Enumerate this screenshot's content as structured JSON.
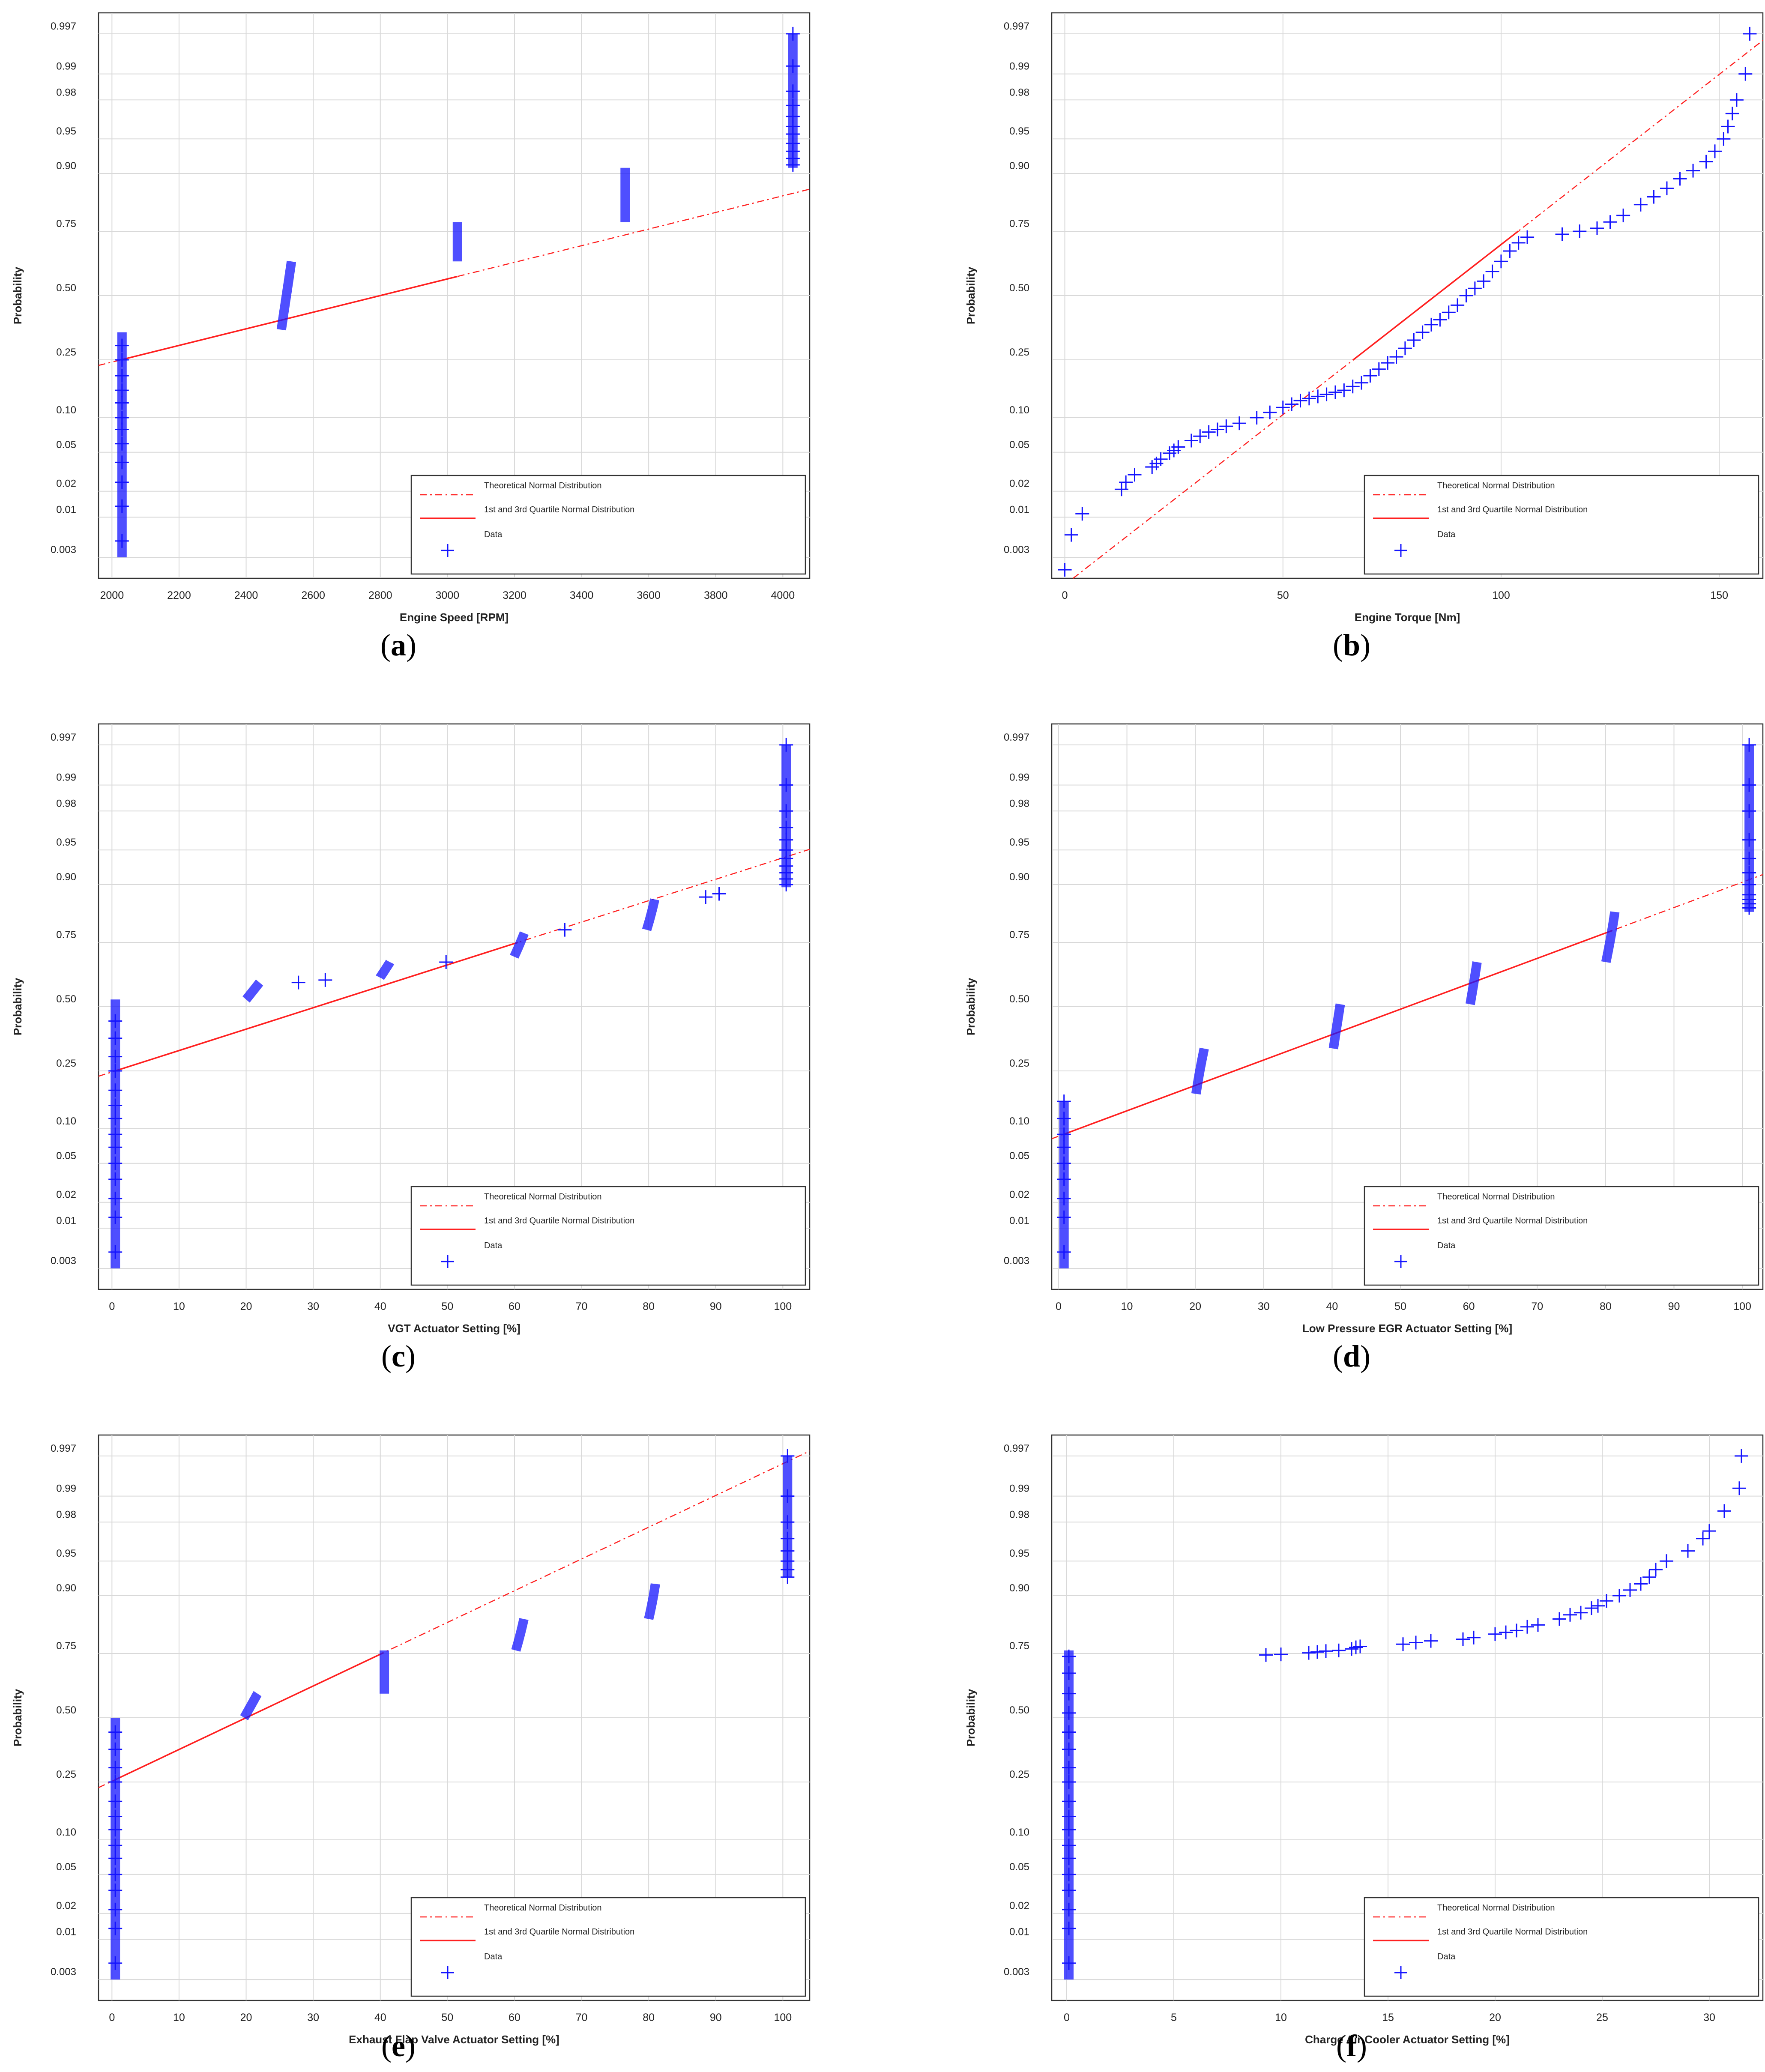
{
  "figure": {
    "colors": {
      "data": "#1414ff",
      "fit": "#ff2020",
      "grid": "#d9d9d9",
      "axis": "#333333"
    },
    "legend": {
      "theoretical": "Theoretical Normal Distribution",
      "quartile": "1st and 3rd Quartile Normal Distribution",
      "data": "Data"
    },
    "ylabel": "Probability",
    "yticks": [
      0.003,
      0.01,
      0.02,
      0.05,
      0.1,
      0.25,
      0.5,
      0.75,
      0.9,
      0.95,
      0.98,
      0.99,
      0.997
    ],
    "ytick_labels": [
      "0.003",
      "0.01",
      "0.02",
      "0.05",
      "0.10",
      "0.25",
      "0.50",
      "0.75",
      "0.90",
      "0.95",
      "0.98",
      "0.99",
      "0.997"
    ]
  },
  "chart_data": [
    {
      "type": "scatter",
      "subtype": "normal-probability-plot",
      "panel_label": "a",
      "xlabel": "Engine Speed [RPM]",
      "xlim": [
        1960,
        4080
      ],
      "xticks": [
        2000,
        2200,
        2400,
        2600,
        2800,
        3000,
        3200,
        3400,
        3600,
        3800,
        4000
      ],
      "fit_line": {
        "mu": 2800,
        "sigma": 1146
      },
      "quartile_range": [
        2030,
        3030
      ],
      "groups": [
        {
          "x": 2030,
          "p": [
            0.003,
            0.35
          ],
          "top_marks": [
            0.005,
            0.0135,
            0.025,
            0.04,
            0.06,
            0.08,
            0.1,
            0.13,
            0.16,
            0.2,
            0.25,
            0.3
          ]
        },
        {
          "x": 2520,
          "p": [
            0.36,
            0.64
          ],
          "spread": 30
        },
        {
          "x": 3030,
          "p": [
            0.64,
            0.78
          ]
        },
        {
          "x": 3530,
          "p": [
            0.78,
            0.91
          ]
        },
        {
          "x": 4030,
          "p": [
            0.91,
            0.997
          ],
          "top_marks": [
            0.915,
            0.925,
            0.935,
            0.945,
            0.955,
            0.962,
            0.97,
            0.977,
            0.984,
            0.992,
            0.997
          ]
        }
      ]
    },
    {
      "type": "scatter",
      "subtype": "normal-probability-plot",
      "panel_label": "b",
      "xlabel": "Engine Torque [Nm]",
      "xlim": [
        -3,
        160
      ],
      "xticks": [
        0,
        50,
        100,
        150
      ],
      "fit_line": {
        "mu": 85,
        "sigma": 28
      },
      "quartile_range": [
        66,
        104
      ],
      "curve": [
        [
          0,
          0.002
        ],
        [
          1.5,
          0.006
        ],
        [
          4,
          0.011
        ],
        [
          13,
          0.021
        ],
        [
          14,
          0.025
        ],
        [
          16,
          0.03
        ],
        [
          20,
          0.036
        ],
        [
          21,
          0.039
        ],
        [
          22,
          0.043
        ],
        [
          24,
          0.049
        ],
        [
          25,
          0.052
        ],
        [
          26,
          0.056
        ],
        [
          29,
          0.064
        ],
        [
          31,
          0.07
        ],
        [
          33,
          0.076
        ],
        [
          35,
          0.08
        ],
        [
          37,
          0.085
        ],
        [
          40,
          0.09
        ],
        [
          44,
          0.1
        ],
        [
          47,
          0.11
        ],
        [
          50,
          0.12
        ],
        [
          52,
          0.127
        ],
        [
          54,
          0.135
        ],
        [
          56,
          0.14
        ],
        [
          58,
          0.145
        ],
        [
          60,
          0.15
        ],
        [
          62,
          0.155
        ],
        [
          64,
          0.16
        ],
        [
          66,
          0.17
        ],
        [
          68,
          0.18
        ],
        [
          70,
          0.2
        ],
        [
          72,
          0.22
        ],
        [
          74,
          0.24
        ],
        [
          76,
          0.26
        ],
        [
          78,
          0.29
        ],
        [
          80,
          0.32
        ],
        [
          82,
          0.35
        ],
        [
          84,
          0.38
        ],
        [
          86,
          0.4
        ],
        [
          88,
          0.43
        ],
        [
          90,
          0.46
        ],
        [
          92,
          0.5
        ],
        [
          94,
          0.53
        ],
        [
          96,
          0.56
        ],
        [
          98,
          0.6
        ],
        [
          100,
          0.64
        ],
        [
          102,
          0.68
        ],
        [
          104,
          0.71
        ],
        [
          106,
          0.73
        ],
        [
          114,
          0.74
        ],
        [
          118,
          0.75
        ],
        [
          122,
          0.76
        ],
        [
          125,
          0.78
        ],
        [
          128,
          0.8
        ],
        [
          132,
          0.83
        ],
        [
          135,
          0.85
        ],
        [
          138,
          0.87
        ],
        [
          141,
          0.89
        ],
        [
          144,
          0.905
        ],
        [
          147,
          0.92
        ],
        [
          149,
          0.935
        ],
        [
          151,
          0.95
        ],
        [
          152,
          0.962
        ],
        [
          153,
          0.972
        ],
        [
          154,
          0.98
        ],
        [
          156,
          0.99
        ],
        [
          157,
          0.997
        ]
      ]
    },
    {
      "type": "scatter",
      "subtype": "normal-probability-plot",
      "panel_label": "c",
      "xlabel": "VGT Actuator Setting [%]",
      "xlim": [
        -2,
        104
      ],
      "xticks": [
        0,
        10,
        20,
        30,
        40,
        50,
        60,
        70,
        80,
        90,
        100
      ],
      "fit_line": {
        "mu": 30.5,
        "sigma": 44.5
      },
      "quartile_range": [
        0.5,
        60.5
      ],
      "groups": [
        {
          "x": 0.5,
          "p": [
            0.003,
            0.53
          ],
          "top_marks": [
            0.005,
            0.0135,
            0.022,
            0.035,
            0.05,
            0.07,
            0.09,
            0.12,
            0.15,
            0.19,
            0.25,
            0.3,
            0.37,
            0.44
          ]
        },
        {
          "x": 21,
          "p": [
            0.53,
            0.6
          ],
          "spread": 2
        },
        {
          "x": 60.7,
          "p": [
            0.7,
            0.78
          ],
          "spread": 1.5
        },
        {
          "x": 40.7,
          "p": [
            0.62,
            0.68
          ],
          "spread": 1.5
        },
        {
          "x": 80.3,
          "p": [
            0.79,
            0.87
          ],
          "spread": 1.2
        },
        {
          "x": 100.5,
          "p": [
            0.895,
            0.997
          ],
          "top_marks": [
            0.9,
            0.91,
            0.92,
            0.93,
            0.94,
            0.95,
            0.96,
            0.97,
            0.98,
            0.99,
            0.997
          ]
        }
      ],
      "points": [
        [
          27.8,
          0.6
        ],
        [
          31.8,
          0.61
        ],
        [
          49.8,
          0.68
        ],
        [
          67.5,
          0.79
        ],
        [
          88.5,
          0.875
        ],
        [
          90.5,
          0.882
        ]
      ]
    },
    {
      "type": "scatter",
      "subtype": "normal-probability-plot",
      "panel_label": "d",
      "xlabel": "Low Pressure EGR Actuator Setting [%]",
      "xlim": [
        -1,
        103
      ],
      "xticks": [
        0,
        10,
        20,
        30,
        40,
        50,
        60,
        70,
        80,
        90,
        100
      ],
      "fit_line": {
        "mu": 51,
        "sigma": 37.5
      },
      "quartile_range": [
        0.8,
        81
      ],
      "groups": [
        {
          "x": 0.8,
          "p": [
            0.003,
            0.16
          ],
          "top_marks": [
            0.005,
            0.0135,
            0.022,
            0.035,
            0.05,
            0.07,
            0.09,
            0.12,
            0.16
          ]
        },
        {
          "x": 20.7,
          "p": [
            0.18,
            0.33
          ],
          "spread": 1.2
        },
        {
          "x": 40.7,
          "p": [
            0.33,
            0.51
          ],
          "spread": 1
        },
        {
          "x": 60.7,
          "p": [
            0.51,
            0.68
          ],
          "spread": 1
        },
        {
          "x": 80.7,
          "p": [
            0.68,
            0.84
          ],
          "spread": 1.3
        },
        {
          "x": 101,
          "p": [
            0.84,
            0.997
          ],
          "top_marks": [
            0.85,
            0.86,
            0.87,
            0.88,
            0.9,
            0.92,
            0.94,
            0.96,
            0.98,
            0.99,
            0.997
          ]
        }
      ]
    },
    {
      "type": "scatter",
      "subtype": "normal-probability-plot",
      "panel_label": "e",
      "xlabel": "Exhaust Flap Valve Actuator Setting [%]",
      "xlim": [
        -2,
        104
      ],
      "xticks": [
        0,
        10,
        20,
        30,
        40,
        50,
        60,
        70,
        80,
        90,
        100
      ],
      "fit_line": {
        "mu": 20,
        "sigma": 30
      },
      "quartile_range": [
        0.5,
        40.5
      ],
      "groups": [
        {
          "x": 0.5,
          "p": [
            0.003,
            0.5
          ],
          "top_marks": [
            0.005,
            0.0135,
            0.022,
            0.035,
            0.05,
            0.07,
            0.09,
            0.12,
            0.15,
            0.19,
            0.25,
            0.3,
            0.37,
            0.44
          ]
        },
        {
          "x": 20.7,
          "p": [
            0.5,
            0.6
          ],
          "spread": 2
        },
        {
          "x": 40.6,
          "p": [
            0.6,
            0.76
          ]
        },
        {
          "x": 60.8,
          "p": [
            0.76,
            0.85
          ],
          "spread": 1.2
        },
        {
          "x": 80.5,
          "p": [
            0.85,
            0.92
          ],
          "spread": 1
        },
        {
          "x": 100.7,
          "p": [
            0.93,
            0.997
          ],
          "top_marks": [
            0.93,
            0.94,
            0.95,
            0.96,
            0.97,
            0.98,
            0.99,
            0.997
          ]
        }
      ]
    },
    {
      "type": "scatter",
      "subtype": "normal-probability-plot",
      "panel_label": "f",
      "xlabel": "Charge Air Cooler Actuator Setting [%]",
      "xlim": [
        -0.7,
        32.5
      ],
      "xticks": [
        0,
        5,
        10,
        15,
        20,
        25,
        30
      ],
      "groups": [
        {
          "x": 0.1,
          "p": [
            0.003,
            0.76
          ],
          "top_marks": [
            0.005,
            0.0135,
            0.022,
            0.035,
            0.05,
            0.07,
            0.09,
            0.12,
            0.15,
            0.19,
            0.25,
            0.3,
            0.37,
            0.44,
            0.52,
            0.6,
            0.68,
            0.74
          ]
        }
      ],
      "points": [
        [
          9.3,
          0.745
        ],
        [
          10,
          0.747
        ],
        [
          11.3,
          0.752
        ],
        [
          11.7,
          0.755
        ],
        [
          12.1,
          0.758
        ],
        [
          12.7,
          0.76
        ],
        [
          13.3,
          0.765
        ],
        [
          13.5,
          0.77
        ],
        [
          13.7,
          0.773
        ],
        [
          15.7,
          0.78
        ],
        [
          16.3,
          0.785
        ],
        [
          17,
          0.79
        ],
        [
          18.5,
          0.795
        ],
        [
          19,
          0.8
        ],
        [
          20,
          0.81
        ],
        [
          20.5,
          0.815
        ],
        [
          21,
          0.82
        ],
        [
          21.5,
          0.83
        ],
        [
          22,
          0.835
        ],
        [
          23,
          0.85
        ],
        [
          23.5,
          0.86
        ],
        [
          24,
          0.865
        ],
        [
          24.5,
          0.875
        ],
        [
          24.8,
          0.88
        ],
        [
          25.2,
          0.89
        ],
        [
          25.8,
          0.9
        ],
        [
          26.3,
          0.91
        ],
        [
          26.8,
          0.92
        ],
        [
          27.2,
          0.93
        ],
        [
          27.5,
          0.94
        ],
        [
          28,
          0.95
        ],
        [
          29,
          0.96
        ],
        [
          29.7,
          0.97
        ],
        [
          30,
          0.975
        ],
        [
          30.7,
          0.985
        ],
        [
          31.4,
          0.992
        ],
        [
          31.5,
          0.997
        ]
      ]
    }
  ]
}
